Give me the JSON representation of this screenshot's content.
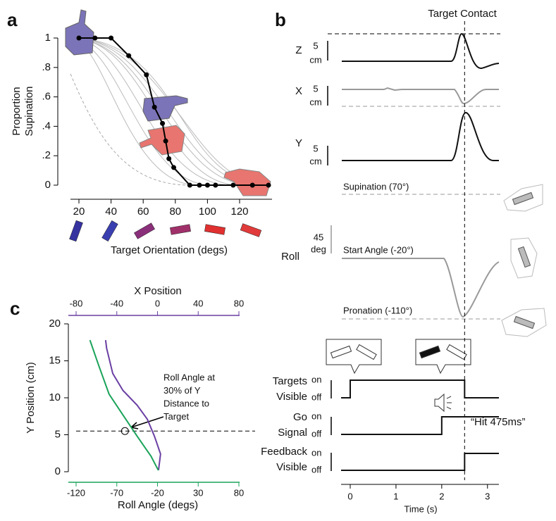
{
  "chart_data": [
    {
      "panel": "a",
      "type": "line",
      "ylabel": [
        "Proportion",
        "Supination"
      ],
      "xlabel": "Target Orientation (degs)",
      "x": [
        20,
        30,
        40,
        51,
        62,
        67,
        72,
        74,
        76,
        79,
        89,
        95,
        100,
        105,
        116,
        128,
        138
      ],
      "values": [
        1,
        1,
        1,
        0.88,
        0.75,
        0.53,
        0.42,
        0.3,
        0.18,
        0.12,
        0,
        0,
        0,
        0,
        0,
        0,
        0
      ],
      "color": "#000000",
      "xlim": [
        15,
        140
      ],
      "xticks": [
        20,
        40,
        60,
        80,
        100,
        120
      ],
      "ylim": [
        0,
        1
      ],
      "yticks": [
        0,
        {
          "value": 0.2,
          "label": ".2"
        },
        {
          "value": 0.4,
          "label": ".4"
        },
        {
          "value": 0.6,
          "label": ".6"
        },
        {
          "value": 0.8,
          "label": ".8"
        },
        1
      ]
    },
    {
      "panel": "b",
      "type": "timeline",
      "annotation": "Target Contact",
      "contact_time": 2.5,
      "traces": [
        {
          "name": "Z",
          "scale": "5",
          "unit": "cm"
        },
        {
          "name": "X",
          "scale": "5",
          "unit": "cm"
        },
        {
          "name": "Y",
          "scale": "5",
          "unit": "cm"
        },
        {
          "name": "Roll",
          "scale": "45",
          "unit": "deg"
        }
      ],
      "reference_labels": [
        "Supination (70°)",
        "Start Angle (-20°)",
        "Pronation (-110°)"
      ],
      "signals": [
        {
          "name": [
            "Targets",
            "Visible"
          ],
          "states": [
            "on",
            "off"
          ],
          "on": 0,
          "off": 2.5
        },
        {
          "name": [
            "Go",
            "Signal"
          ],
          "states": [
            "on",
            "off"
          ],
          "on": 2
        },
        {
          "name": [
            "Feedback",
            "Visible"
          ],
          "states": [
            "on",
            "off"
          ],
          "on": 2.5
        }
      ],
      "feedback_text": "“Hit 475ms”",
      "xlabel": "Time (s)",
      "xlim": [
        -0.2,
        3.25
      ],
      "xticks": [
        0,
        1,
        2,
        3
      ]
    },
    {
      "panel": "c",
      "type": "line",
      "x2label": "X Position",
      "xlabel": "Roll Angle (degs)",
      "ylabel": "Y Position (cm)",
      "xlim": [
        -120,
        80
      ],
      "xticks": [
        -120,
        -70,
        -20,
        30,
        80
      ],
      "x2lim": [
        -80,
        80
      ],
      "x2ticks": [
        -80,
        -40,
        0,
        40,
        80
      ],
      "ylim": [
        0,
        20
      ],
      "yticks": [
        0,
        5,
        10,
        15,
        20
      ],
      "hline": 5.5,
      "marker": [
        -60,
        5.5
      ],
      "annotation": [
        "Roll Angle at",
        "30% of Y",
        "Distance to",
        "Target"
      ],
      "series": [
        {
          "axis": "x2",
          "color": "#6a3fa3",
          "x": [
            -51,
            -50,
            -44,
            -34,
            -20,
            -10,
            -3,
            3,
            1
          ],
          "y": [
            17.8,
            16.7,
            13.3,
            11,
            9,
            7.1,
            4.8,
            2.4,
            0.2
          ]
        },
        {
          "color": "#1ba35a",
          "x": [
            -103,
            -92,
            -79.5,
            -62,
            -45,
            -28,
            -19
          ],
          "y": [
            17.8,
            14.3,
            10.5,
            7.6,
            4.8,
            2.1,
            0.2
          ]
        }
      ]
    }
  ]
}
